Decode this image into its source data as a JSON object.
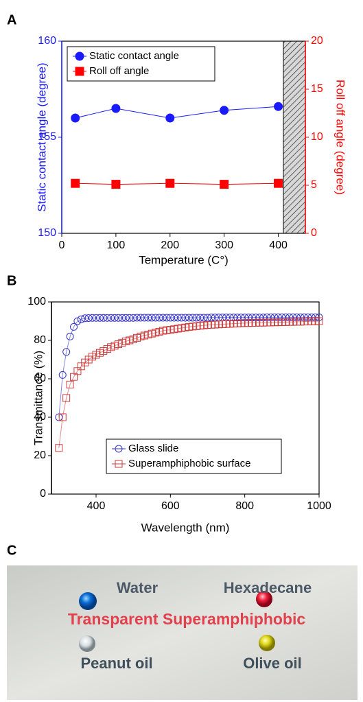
{
  "chart_data": [
    {
      "type": "line",
      "panel": "A",
      "x_label": "Temperature (C°)",
      "y_label": "Static contact angle (degree)",
      "y2_label": "Roll off angle (degree)",
      "x": [
        25,
        100,
        200,
        300,
        400
      ],
      "xlim": [
        0,
        450
      ],
      "xticks": [
        0,
        100,
        200,
        300,
        400
      ],
      "ylim": [
        150,
        160
      ],
      "yticks": [
        150,
        155,
        160
      ],
      "y2lim": [
        0,
        20
      ],
      "y2ticks": [
        0,
        5,
        10,
        15,
        20
      ],
      "legend": "upper left",
      "series": [
        {
          "name": "Static contact angle",
          "color": "#1a1aff",
          "marker": "circle",
          "filled": true,
          "values": [
            156,
            156.5,
            156,
            156.4,
            156.6
          ]
        },
        {
          "name": "Roll off angle",
          "color": "#ff0000",
          "marker": "square",
          "filled": true,
          "axis": "y2",
          "values": [
            5.2,
            5.1,
            5.2,
            5.1,
            5.2
          ]
        }
      ]
    },
    {
      "type": "line",
      "panel": "B",
      "x_label": "Wavelength (nm)",
      "y_label": "Transmittance (%)",
      "x": [
        300,
        310,
        320,
        330,
        340,
        350,
        360,
        370,
        380,
        390,
        400,
        410,
        420,
        430,
        440,
        450,
        460,
        470,
        480,
        490,
        500,
        510,
        520,
        530,
        540,
        550,
        560,
        570,
        580,
        590,
        600,
        610,
        620,
        630,
        640,
        650,
        660,
        670,
        680,
        690,
        700,
        710,
        720,
        730,
        740,
        750,
        760,
        770,
        780,
        790,
        800,
        810,
        820,
        830,
        840,
        850,
        860,
        870,
        880,
        890,
        900,
        910,
        920,
        930,
        940,
        950,
        960,
        970,
        980,
        990,
        1000
      ],
      "xlim": [
        280,
        1000
      ],
      "xticks": [
        400,
        600,
        800,
        1000
      ],
      "ylim": [
        0,
        100
      ],
      "yticks": [
        0,
        20,
        40,
        60,
        80,
        100
      ],
      "legend": "lower center",
      "series": [
        {
          "name": "Glass slide",
          "color": "#3535c8",
          "marker": "circle",
          "filled": false,
          "values": [
            40,
            62,
            74,
            82,
            87,
            90,
            91,
            91.5,
            91.6,
            91.7,
            91.7,
            91.7,
            91.7,
            91.7,
            91.7,
            91.7,
            91.7,
            91.7,
            91.7,
            91.7,
            91.7,
            91.8,
            91.8,
            91.8,
            91.8,
            91.8,
            91.8,
            91.8,
            91.8,
            91.8,
            91.8,
            91.8,
            91.8,
            91.8,
            91.8,
            91.8,
            91.8,
            91.8,
            91.8,
            91.8,
            91.8,
            91.9,
            91.9,
            91.9,
            91.9,
            91.9,
            91.9,
            91.9,
            91.9,
            91.9,
            91.9,
            91.9,
            91.9,
            91.9,
            91.9,
            91.9,
            92,
            92,
            92,
            92,
            92,
            92,
            92,
            92,
            92,
            92,
            92,
            92,
            92,
            92,
            92
          ]
        },
        {
          "name": "Superamphiphobic surface",
          "color": "#cc3a3a",
          "marker": "square",
          "filled": false,
          "values": [
            24,
            40,
            50,
            57,
            61,
            64,
            66.5,
            68.5,
            70,
            71.5,
            72.5,
            73.5,
            74.5,
            75.5,
            76.5,
            77.2,
            78,
            78.8,
            79.5,
            80,
            80.5,
            81.3,
            82,
            82.5,
            83,
            83.5,
            84,
            84.5,
            85,
            85.3,
            85.5,
            85.8,
            86.1,
            86.4,
            86.7,
            87,
            87.2,
            87.4,
            87.6,
            87.8,
            88,
            88.1,
            88.2,
            88.3,
            88.4,
            88.5,
            88.6,
            88.7,
            88.8,
            88.9,
            89,
            89,
            89.1,
            89.1,
            89.2,
            89.2,
            89.3,
            89.3,
            89.4,
            89.4,
            89.5,
            89.5,
            89.6,
            89.6,
            89.7,
            89.7,
            89.8,
            89.8,
            89.9,
            89.9,
            90
          ]
        }
      ]
    }
  ],
  "panel_c": {
    "label": "C",
    "texts": [
      "Water",
      "Hexadecane",
      "Transparent Superamphiphobic",
      "Peanut oil",
      "Olive oil"
    ]
  }
}
